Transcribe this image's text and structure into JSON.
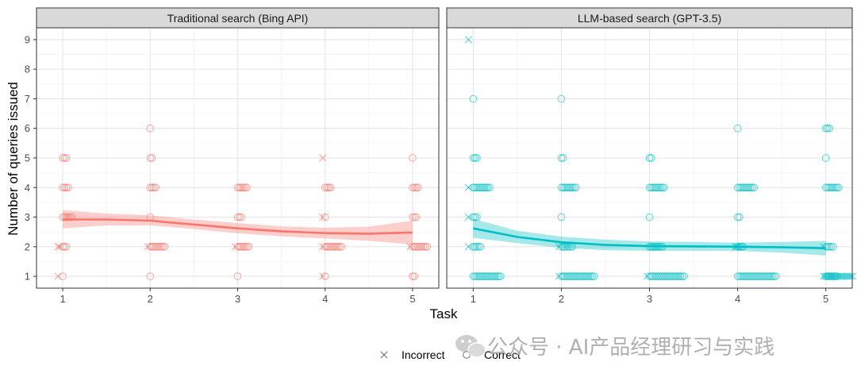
{
  "watermark": "公众号 · AI产品经理研习与实践",
  "chart_data": {
    "type": "scatter",
    "xlabel": "Task",
    "ylabel": "Number of queries issued",
    "x_ticks": [
      1,
      2,
      3,
      4,
      5
    ],
    "y_ticks": [
      1,
      2,
      3,
      4,
      5,
      6,
      7,
      8,
      9
    ],
    "xlim": [
      0.7,
      5.3
    ],
    "ylim": [
      0.6,
      9.4
    ],
    "grid": true,
    "legend": {
      "placement": "bottom",
      "entries": [
        {
          "label": "Incorrect",
          "shape": "cross"
        },
        {
          "label": "Correct",
          "shape": "circle"
        }
      ]
    },
    "panels": [
      {
        "title": "Traditional search (Bing API)",
        "color": "#F8766D",
        "smooth": {
          "x": [
            1,
            1.5,
            2,
            2.5,
            3,
            3.5,
            4,
            4.5,
            5
          ],
          "y": [
            2.92,
            2.92,
            2.88,
            2.75,
            2.62,
            2.52,
            2.46,
            2.44,
            2.48
          ],
          "lower": [
            2.62,
            2.72,
            2.72,
            2.6,
            2.45,
            2.35,
            2.28,
            2.2,
            2.08
          ],
          "upper": [
            3.24,
            3.12,
            3.06,
            2.92,
            2.8,
            2.69,
            2.64,
            2.68,
            2.88
          ]
        },
        "correct": [
          {
            "x": 1,
            "y": 1,
            "n": 1
          },
          {
            "x": 1,
            "y": 2,
            "n": 3
          },
          {
            "x": 1,
            "y": 3,
            "n": 6
          },
          {
            "x": 1,
            "y": 4,
            "n": 4
          },
          {
            "x": 1,
            "y": 5,
            "n": 3
          },
          {
            "x": 2,
            "y": 1,
            "n": 1
          },
          {
            "x": 2,
            "y": 2,
            "n": 9
          },
          {
            "x": 2,
            "y": 3,
            "n": 1
          },
          {
            "x": 2,
            "y": 4,
            "n": 4
          },
          {
            "x": 2,
            "y": 5,
            "n": 2
          },
          {
            "x": 2,
            "y": 6,
            "n": 1
          },
          {
            "x": 3,
            "y": 1,
            "n": 1
          },
          {
            "x": 3,
            "y": 2,
            "n": 7
          },
          {
            "x": 3,
            "y": 3,
            "n": 3
          },
          {
            "x": 3,
            "y": 4,
            "n": 6
          },
          {
            "x": 4,
            "y": 1,
            "n": 1
          },
          {
            "x": 4,
            "y": 2,
            "n": 10
          },
          {
            "x": 4,
            "y": 3,
            "n": 1
          },
          {
            "x": 4,
            "y": 4,
            "n": 4
          },
          {
            "x": 5,
            "y": 1,
            "n": 2
          },
          {
            "x": 5,
            "y": 2,
            "n": 9
          },
          {
            "x": 5,
            "y": 3,
            "n": 3
          },
          {
            "x": 5,
            "y": 4,
            "n": 4
          },
          {
            "x": 5,
            "y": 5,
            "n": 1
          }
        ],
        "incorrect": [
          {
            "x": 1,
            "y": 1,
            "n": 1
          },
          {
            "x": 1,
            "y": 2,
            "n": 2
          },
          {
            "x": 2,
            "y": 2,
            "n": 1
          },
          {
            "x": 3,
            "y": 2,
            "n": 1
          },
          {
            "x": 4,
            "y": 1,
            "n": 1
          },
          {
            "x": 4,
            "y": 2,
            "n": 1
          },
          {
            "x": 4,
            "y": 3,
            "n": 1
          },
          {
            "x": 4,
            "y": 5,
            "n": 1
          },
          {
            "x": 5,
            "y": 2,
            "n": 1
          }
        ]
      },
      {
        "title": "LLM-based search (GPT-3.5)",
        "color": "#00BFC4",
        "smooth": {
          "x": [
            1,
            1.5,
            2,
            2.5,
            3,
            3.5,
            4,
            4.5,
            5
          ],
          "y": [
            2.62,
            2.33,
            2.15,
            2.06,
            2.02,
            2.01,
            2.0,
            1.98,
            1.95
          ],
          "lower": [
            2.3,
            2.12,
            1.96,
            1.88,
            1.86,
            1.86,
            1.86,
            1.8,
            1.7
          ],
          "upper": [
            2.94,
            2.54,
            2.34,
            2.24,
            2.18,
            2.16,
            2.14,
            2.16,
            2.2
          ]
        },
        "correct": [
          {
            "x": 1,
            "y": 1,
            "n": 16
          },
          {
            "x": 1,
            "y": 2,
            "n": 5
          },
          {
            "x": 1,
            "y": 3,
            "n": 3
          },
          {
            "x": 1,
            "y": 4,
            "n": 10
          },
          {
            "x": 1,
            "y": 5,
            "n": 3
          },
          {
            "x": 1,
            "y": 7,
            "n": 1
          },
          {
            "x": 2,
            "y": 1,
            "n": 19
          },
          {
            "x": 2,
            "y": 2,
            "n": 7
          },
          {
            "x": 2,
            "y": 3,
            "n": 1
          },
          {
            "x": 2,
            "y": 4,
            "n": 9
          },
          {
            "x": 2,
            "y": 5,
            "n": 2
          },
          {
            "x": 2,
            "y": 7,
            "n": 1
          },
          {
            "x": 3,
            "y": 1,
            "n": 20
          },
          {
            "x": 3,
            "y": 2,
            "n": 8
          },
          {
            "x": 3,
            "y": 3,
            "n": 1
          },
          {
            "x": 3,
            "y": 4,
            "n": 9
          },
          {
            "x": 3,
            "y": 5,
            "n": 2
          },
          {
            "x": 4,
            "y": 1,
            "n": 22
          },
          {
            "x": 4,
            "y": 2,
            "n": 4
          },
          {
            "x": 4,
            "y": 3,
            "n": 2
          },
          {
            "x": 4,
            "y": 4,
            "n": 10
          },
          {
            "x": 4,
            "y": 6,
            "n": 1
          },
          {
            "x": 5,
            "y": 1,
            "n": 7
          },
          {
            "x": 5,
            "y": 2,
            "n": 5
          },
          {
            "x": 5,
            "y": 4,
            "n": 8
          },
          {
            "x": 5,
            "y": 5,
            "n": 1
          },
          {
            "x": 5,
            "y": 6,
            "n": 3
          }
        ],
        "incorrect": [
          {
            "x": 1,
            "y": 2,
            "n": 1
          },
          {
            "x": 1,
            "y": 3,
            "n": 1
          },
          {
            "x": 1,
            "y": 4,
            "n": 1
          },
          {
            "x": 1,
            "y": 9,
            "n": 1
          },
          {
            "x": 2,
            "y": 1,
            "n": 1
          },
          {
            "x": 2,
            "y": 2,
            "n": 1
          },
          {
            "x": 3,
            "y": 1,
            "n": 1
          },
          {
            "x": 4,
            "y": 2,
            "n": 2
          },
          {
            "x": 5,
            "y": 1,
            "n": 17
          },
          {
            "x": 5,
            "y": 2,
            "n": 1
          }
        ]
      }
    ]
  }
}
